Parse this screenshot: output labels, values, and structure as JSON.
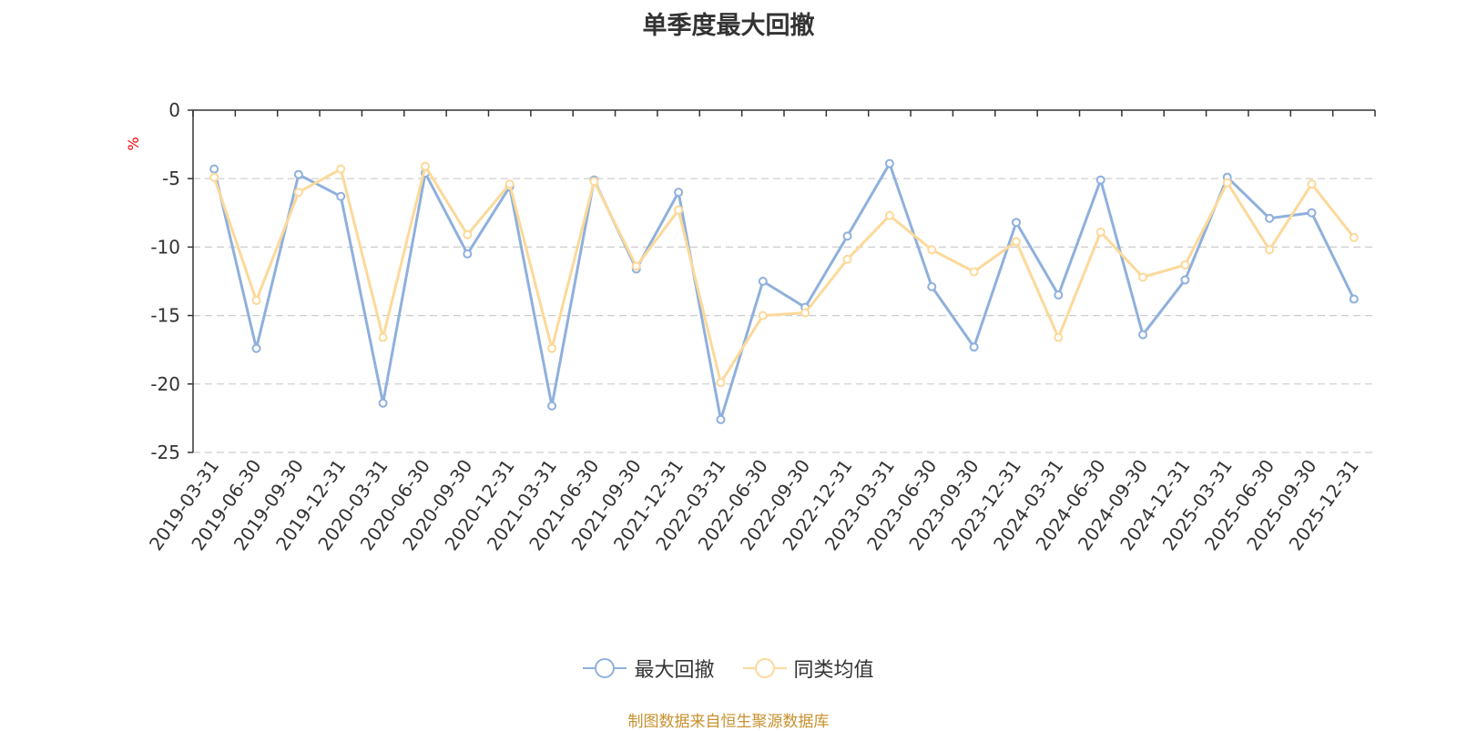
{
  "chart_data": {
    "type": "line",
    "title": "单季度最大回撤",
    "ylabel": "%",
    "ylim": [
      -25,
      0
    ],
    "yticks": [
      0,
      -5,
      -10,
      -15,
      -20,
      -25
    ],
    "grid": true,
    "legend_position": "bottom",
    "categories": [
      "2019-03-31",
      "2019-06-30",
      "2019-09-30",
      "2019-12-31",
      "2020-03-31",
      "2020-06-30",
      "2020-09-30",
      "2020-12-31",
      "2021-03-31",
      "2021-06-30",
      "2021-09-30",
      "2021-12-31",
      "2022-03-31",
      "2022-06-30",
      "2022-09-30",
      "2022-12-31",
      "2023-03-31",
      "2023-06-30",
      "2023-09-30",
      "2023-12-31",
      "2024-03-31",
      "2024-06-30",
      "2024-09-30",
      "2024-12-31",
      "2025-03-31",
      "2025-06-30",
      "2025-09-30",
      "2025-12-31"
    ],
    "series": [
      {
        "name": "最大回撤",
        "color": "#8fb0dc",
        "values": [
          -4.3,
          -17.4,
          -4.7,
          -6.3,
          -21.4,
          -4.6,
          -10.5,
          -5.6,
          -21.6,
          -5.1,
          -11.6,
          -6.0,
          -22.6,
          -12.5,
          -14.4,
          -9.2,
          -3.9,
          -12.9,
          -17.3,
          -8.2,
          -13.5,
          -5.1,
          -16.4,
          -12.4,
          -4.9,
          -7.9,
          -7.5,
          -13.8
        ]
      },
      {
        "name": "同类均值",
        "color": "#fcd99a",
        "values": [
          -4.9,
          -13.9,
          -6.0,
          -4.3,
          -16.6,
          -4.1,
          -9.1,
          -5.4,
          -17.4,
          -5.2,
          -11.4,
          -7.3,
          -19.9,
          -15.0,
          -14.8,
          -10.9,
          -7.7,
          -10.2,
          -11.8,
          -9.6,
          -16.6,
          -8.9,
          -12.2,
          -11.3,
          -5.3,
          -10.2,
          -5.4,
          -9.3
        ]
      }
    ]
  },
  "source_text": "制图数据来自恒生聚源数据库"
}
